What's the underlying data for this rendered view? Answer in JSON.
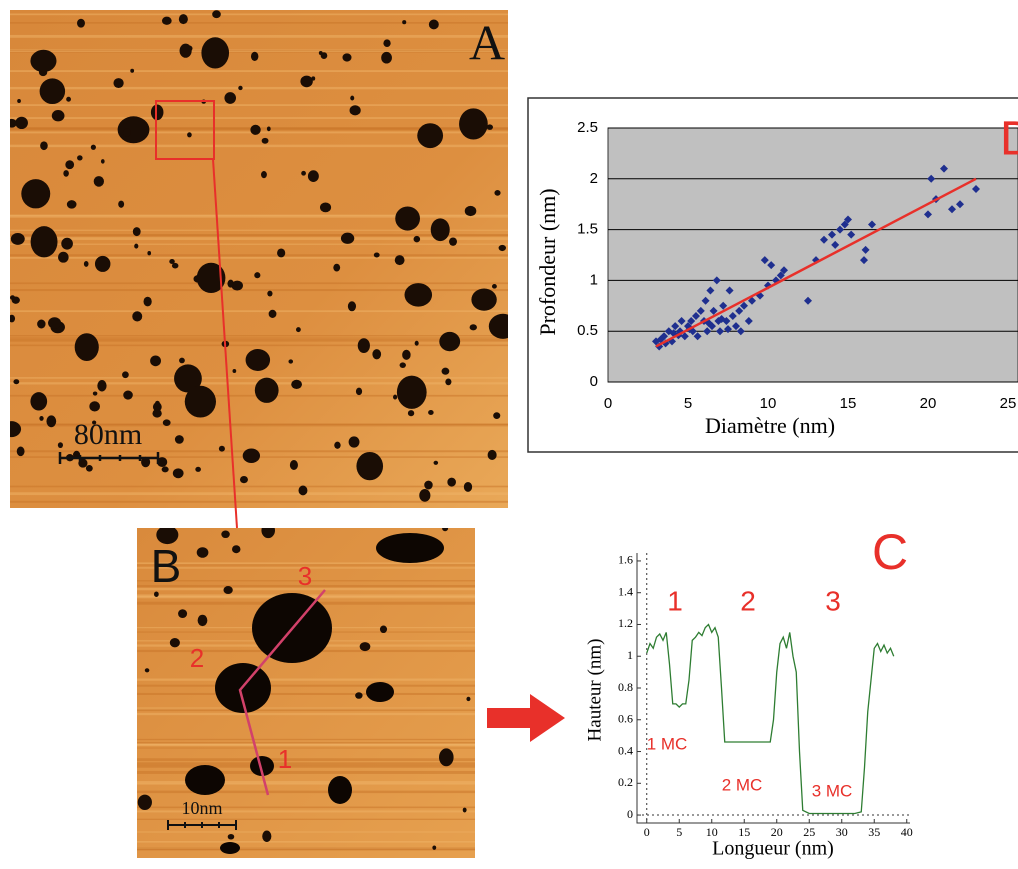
{
  "images": {
    "A": {
      "label": "A",
      "scale": "80nm"
    },
    "B": {
      "label": "B",
      "scale": "10nm",
      "profile_marks": [
        "1",
        "2",
        "3"
      ]
    }
  },
  "chart_data": [
    {
      "type": "scatter",
      "title": "D",
      "xlabel": "Diamètre (nm)",
      "ylabel": "Profondeur (nm)",
      "x": [
        3,
        3.2,
        3.5,
        3.8,
        4,
        4.2,
        4.5,
        4.6,
        4.8,
        5,
        5.2,
        5.3,
        5.5,
        5.6,
        5.8,
        6,
        6.1,
        6.2,
        6.4,
        6.5,
        6.6,
        6.8,
        6.9,
        7,
        7.2,
        7.4,
        7.6,
        7.8,
        8,
        8.2,
        8.5,
        8.8,
        9,
        9.5,
        9.8,
        10,
        10.2,
        10.5,
        10.8,
        11,
        12.5,
        13,
        13.5,
        14,
        14.2,
        14.5,
        14.8,
        15,
        15.2,
        16,
        16.1,
        16.5,
        20,
        20.2,
        20.5,
        21,
        21.5,
        22,
        23,
        3.3,
        4.1,
        5.1,
        6.3,
        7.1,
        7.5,
        8.3,
        3.6,
        4.4
      ],
      "series": [
        {
          "color": "#1f2f8f",
          "values": [
            0.4,
            0.35,
            0.45,
            0.5,
            0.4,
            0.55,
            0.5,
            0.6,
            0.45,
            0.55,
            0.6,
            0.5,
            0.65,
            0.45,
            0.7,
            0.6,
            0.8,
            0.5,
            0.9,
            0.55,
            0.7,
            1.0,
            0.6,
            0.5,
            0.75,
            0.6,
            0.9,
            0.65,
            0.55,
            0.7,
            0.75,
            0.6,
            0.8,
            0.85,
            1.2,
            0.95,
            1.15,
            1.0,
            1.05,
            1.1,
            0.8,
            1.2,
            1.4,
            1.45,
            1.35,
            1.5,
            1.55,
            1.6,
            1.45,
            1.2,
            1.3,
            1.55,
            1.65,
            2.0,
            1.8,
            2.1,
            1.7,
            1.75,
            1.9,
            0.42,
            0.48,
            0.52,
            0.58,
            0.62,
            0.52,
            0.5,
            0.38,
            0.46
          ]
        }
      ],
      "trendline": {
        "x": [
          3,
          23
        ],
        "values": [
          0.35,
          2.0
        ],
        "color": "#e8302a"
      },
      "xlim": [
        0,
        25
      ],
      "ylim": [
        0,
        2.5
      ],
      "xticks": [
        0,
        5,
        10,
        15,
        20,
        25
      ],
      "yticks": [
        0,
        0.5,
        1,
        1.5,
        2,
        2.5
      ],
      "grid": true,
      "background": "#c0c0c0"
    },
    {
      "type": "line",
      "title": "C",
      "xlabel": "Longueur (nm)",
      "ylabel": "Hauteur (nm)",
      "x": [
        0,
        0.5,
        1,
        1.5,
        2,
        2.5,
        3,
        3.5,
        4,
        4.5,
        5,
        5.5,
        6,
        6.5,
        7,
        7.5,
        8,
        8.5,
        9,
        9.5,
        10,
        10.5,
        11,
        11.5,
        12,
        13,
        14,
        15,
        16,
        17,
        18,
        19,
        19.5,
        20,
        20.5,
        21,
        21.5,
        22,
        22.5,
        23,
        23.5,
        24,
        25,
        26,
        28,
        30,
        32,
        33,
        33.5,
        34,
        34.5,
        35,
        35.5,
        36,
        36.5,
        37,
        37.5,
        38
      ],
      "series": [
        {
          "color": "#2e7d32",
          "values": [
            1.02,
            1.08,
            1.05,
            1.12,
            1.14,
            1.1,
            1.15,
            0.95,
            0.7,
            0.7,
            0.68,
            0.7,
            0.7,
            0.85,
            1.1,
            1.12,
            1.15,
            1.13,
            1.18,
            1.2,
            1.15,
            1.18,
            1.12,
            0.8,
            0.46,
            0.46,
            0.46,
            0.46,
            0.46,
            0.46,
            0.46,
            0.46,
            0.6,
            0.9,
            1.08,
            1.12,
            1.05,
            1.15,
            1.0,
            0.9,
            0.4,
            0.03,
            0.01,
            0.01,
            0.01,
            0.01,
            0.01,
            0.02,
            0.3,
            0.65,
            0.85,
            1.05,
            1.08,
            1.03,
            1.07,
            1.02,
            1.05,
            1.0
          ]
        }
      ],
      "annotations": [
        "1",
        "2",
        "3",
        "1 MC",
        "2 MC",
        "3 MC"
      ],
      "xlim": [
        -1.5,
        40.5
      ],
      "ylim": [
        -0.05,
        1.65
      ],
      "xticks": [
        0,
        5,
        10,
        15,
        20,
        25,
        30,
        35,
        40
      ],
      "yticks": [
        0,
        0.2,
        0.4,
        0.6,
        0.8,
        1,
        1.2,
        1.4,
        1.6
      ]
    }
  ]
}
